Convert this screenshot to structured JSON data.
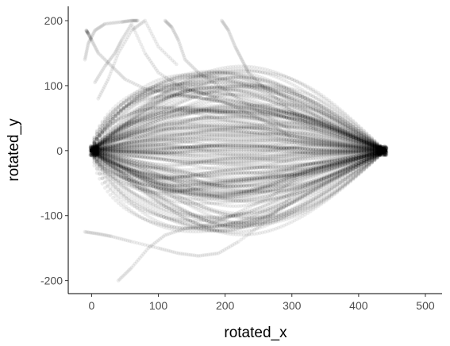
{
  "chart_data": {
    "type": "scatter",
    "xlabel": "rotated_x",
    "ylabel": "rotated_y",
    "xlim": [
      -35,
      525
    ],
    "ylim": [
      -220,
      222
    ],
    "x_ticks": [
      0,
      100,
      200,
      300,
      400,
      500
    ],
    "y_ticks": [
      -200,
      -100,
      0,
      100,
      200
    ],
    "grid": false,
    "legend": "none",
    "point_color": "#000000",
    "point_opacity": 0.07,
    "description_free_trajectories": {
      "note_unit": "each series is a dense chain of semi-transparent points from x≈0 to x≈440 converging to y≈0 at both ends",
      "series": [
        {
          "peak_x": 170,
          "peak_y": 60
        },
        {
          "peak_x": 180,
          "peak_y": -65
        },
        {
          "peak_x": 150,
          "peak_y": 40
        },
        {
          "peak_x": 200,
          "peak_y": -40
        },
        {
          "peak_x": 160,
          "peak_y": 90
        },
        {
          "peak_x": 210,
          "peak_y": -95
        },
        {
          "peak_x": 190,
          "peak_y": 120
        },
        {
          "peak_x": 220,
          "peak_y": -120
        },
        {
          "peak_x": 140,
          "peak_y": 20
        },
        {
          "peak_x": 230,
          "peak_y": -20
        }
      ]
    },
    "stray_paths": [
      {
        "x": [
          -8,
          -5,
          0,
          10,
          30,
          50,
          80,
          110,
          140,
          170,
          190,
          210,
          240,
          270,
          300
        ],
        "y": [
          185,
          180,
          170,
          150,
          130,
          110,
          95,
          90,
          85,
          80,
          78,
          70,
          55,
          40,
          20
        ]
      },
      {
        "x": [
          -10,
          -5,
          5,
          20,
          45,
          60,
          70
        ],
        "y": [
          140,
          165,
          185,
          195,
          198,
          200,
          200
        ]
      },
      {
        "x": [
          5,
          20,
          35,
          45,
          60,
          80,
          100,
          130,
          160,
          190
        ],
        "y": [
          105,
          130,
          150,
          170,
          195,
          150,
          120,
          100,
          90,
          80
        ]
      },
      {
        "x": [
          10,
          25,
          40,
          60,
          80,
          100,
          130
        ],
        "y": [
          80,
          110,
          150,
          185,
          200,
          160,
          130
        ]
      },
      {
        "x": [
          110,
          120,
          130,
          140,
          160,
          190,
          220,
          260,
          300
        ],
        "y": [
          200,
          190,
          170,
          140,
          120,
          100,
          80,
          55,
          30
        ]
      },
      {
        "x": [
          195,
          205,
          215,
          225,
          235,
          260,
          300,
          340
        ],
        "y": [
          200,
          185,
          160,
          140,
          120,
          95,
          60,
          30
        ]
      },
      {
        "x": [
          -10,
          10,
          30,
          60,
          100,
          130,
          160,
          190,
          220,
          260,
          300
        ],
        "y": [
          -125,
          -128,
          -132,
          -140,
          -150,
          -158,
          -162,
          -158,
          -140,
          -110,
          -70
        ]
      },
      {
        "x": [
          40,
          60,
          85,
          110,
          140,
          170,
          200,
          230,
          270,
          310
        ],
        "y": [
          -200,
          -180,
          -150,
          -130,
          -120,
          -115,
          -105,
          -90,
          -70,
          -40
        ]
      }
    ]
  }
}
